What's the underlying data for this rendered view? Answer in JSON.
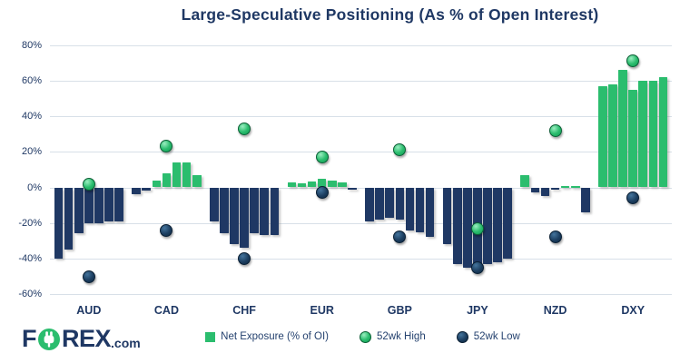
{
  "title": "Large-Speculative Positioning (As % of Open Interest)",
  "logo": {
    "part1": "F",
    "part2": "REX",
    "suffix": ".com",
    "o_icon": "power-plug-in-green-circle"
  },
  "legend": {
    "net_exposure": {
      "label": "Net Exposure (% of OI)",
      "swatch": "green-square"
    },
    "high": {
      "label": "52wk High",
      "swatch": "green-sphere-dot"
    },
    "low": {
      "label": "52wk Low",
      "swatch": "navy-sphere-dot"
    }
  },
  "colors": {
    "bar_positive": "#2BBD6E",
    "bar_negative": "#1F3864",
    "dot_high": "#2BBD6E",
    "dot_low": "#1C3E60",
    "gridline": "#D8E0E8",
    "text_navy": "#1F3864",
    "background": "#FFFFFF"
  },
  "chart_data": {
    "type": "bar",
    "title": "Large-Speculative Positioning (As % of Open Interest)",
    "xlabel": "",
    "ylabel": "",
    "ylim": [
      -60,
      80
    ],
    "grid": true,
    "legend_position": "bottom",
    "y_ticks": [
      {
        "value": 80,
        "label": "80%"
      },
      {
        "value": 60,
        "label": "60%"
      },
      {
        "value": 40,
        "label": "40%"
      },
      {
        "value": 20,
        "label": "20%"
      },
      {
        "value": 0,
        "label": "0%"
      },
      {
        "value": -20,
        "label": "-20%"
      },
      {
        "value": -40,
        "label": "-40%"
      },
      {
        "value": -60,
        "label": "-60%"
      }
    ],
    "categories": [
      "AUD",
      "CAD",
      "CHF",
      "EUR",
      "GBP",
      "JPY",
      "NZD",
      "DXY"
    ],
    "groups": [
      {
        "label": "AUD",
        "net_exposure_bars": [
          -40,
          -35,
          -26,
          -20,
          -20,
          -19,
          -19
        ],
        "high_52wk": 2,
        "low_52wk": -50
      },
      {
        "label": "CAD",
        "net_exposure_bars": [
          -4,
          -2,
          4,
          8,
          14,
          14,
          7
        ],
        "high_52wk": 23,
        "low_52wk": -24
      },
      {
        "label": "CHF",
        "net_exposure_bars": [
          -19,
          -26,
          -32,
          -34,
          -26,
          -27,
          -27
        ],
        "high_52wk": 33,
        "low_52wk": -40
      },
      {
        "label": "EUR",
        "net_exposure_bars": [
          3,
          2.5,
          3.5,
          5,
          4,
          3,
          -1.5
        ],
        "high_52wk": 17,
        "low_52wk": -3
      },
      {
        "label": "GBP",
        "net_exposure_bars": [
          -19,
          -18,
          -17,
          -18,
          -24,
          -25,
          -28
        ],
        "high_52wk": 21,
        "low_52wk": -28
      },
      {
        "label": "JPY",
        "net_exposure_bars": [
          -32,
          -43,
          -45,
          -45,
          -43,
          -42,
          -40
        ],
        "high_52wk": -23,
        "low_52wk": -45
      },
      {
        "label": "NZD",
        "net_exposure_bars": [
          7,
          -3,
          -5,
          -1.5,
          1,
          1,
          -14
        ],
        "high_52wk": 32,
        "low_52wk": -28
      },
      {
        "label": "DXY",
        "net_exposure_bars": [
          57,
          58,
          66,
          55,
          60,
          60,
          62
        ],
        "high_52wk": 71,
        "low_52wk": -6
      }
    ]
  }
}
